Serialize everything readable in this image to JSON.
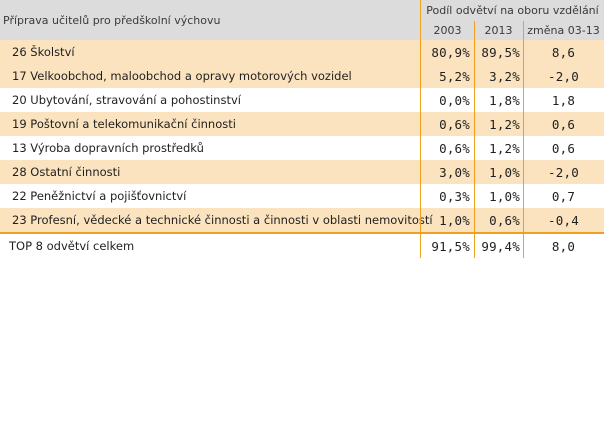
{
  "header": {
    "row_title": "Příprava učitelů pro předškolní výchovu",
    "group_title": "Podíl odvětví na oboru vzdělání",
    "col_2003": "2003",
    "col_2013": "2013",
    "col_change": "změna 03-13"
  },
  "rows": [
    {
      "name": "26 Školství",
      "v2003": "80,9%",
      "v2013": "89,5%",
      "change": "8,6"
    },
    {
      "name": "17 Velkoobchod, maloobchod a opravy motorových vozidel",
      "v2003": "5,2%",
      "v2013": "3,2%",
      "change": "-2,0"
    },
    {
      "name": "20 Ubytování, stravování a pohostinství",
      "v2003": "0,0%",
      "v2013": "1,8%",
      "change": "1,8"
    },
    {
      "name": "19 Poštovní a telekomunikační činnosti",
      "v2003": "0,6%",
      "v2013": "1,2%",
      "change": "0,6"
    },
    {
      "name": "13 Výroba dopravních prostředků",
      "v2003": "0,6%",
      "v2013": "1,2%",
      "change": "0,6"
    },
    {
      "name": "28 Ostatní činnosti",
      "v2003": "3,0%",
      "v2013": "1,0%",
      "change": "-2,0"
    },
    {
      "name": "22 Peněžnictví a pojišťovnictví",
      "v2003": "0,3%",
      "v2013": "1,0%",
      "change": "0,7"
    },
    {
      "name": "23 Profesní, vědecké a technické činnosti a činnosti v oblasti nemovitostí",
      "v2003": "1,0%",
      "v2013": "0,6%",
      "change": "-0,4"
    }
  ],
  "total": {
    "name": "TOP 8 odvětví celkem",
    "v2003": "91,5%",
    "v2013": "99,4%",
    "change": "8,0"
  },
  "colors": {
    "header_bg": "#dcdcdc",
    "shade": "#fbe3bf",
    "accent": "#f0a020"
  }
}
